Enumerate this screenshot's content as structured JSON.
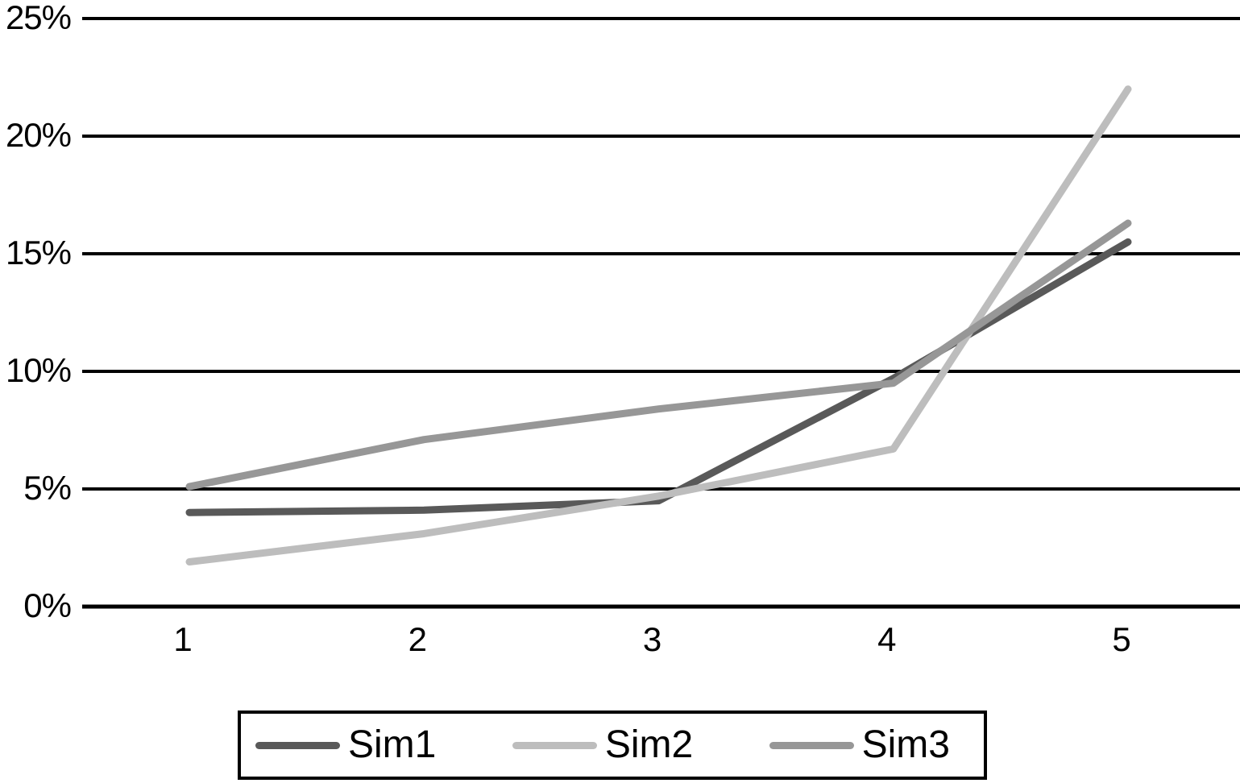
{
  "colors": {
    "background": "#ffffff",
    "gridline": "#000000",
    "text": "#000000",
    "legend_border": "#000000",
    "sim1": "#595959",
    "sim2": "#bdbdbd",
    "sim3": "#979797"
  },
  "chart_data": {
    "type": "line",
    "title": "",
    "xlabel": "",
    "ylabel": "",
    "categories": [
      "1",
      "2",
      "3",
      "4",
      "5"
    ],
    "series": [
      {
        "name": "Sim1",
        "color": "#595959",
        "values": [
          4.0,
          4.1,
          4.5,
          9.7,
          15.5
        ]
      },
      {
        "name": "Sim2",
        "color": "#bdbdbd",
        "values": [
          1.9,
          3.1,
          4.7,
          6.7,
          22.0
        ]
      },
      {
        "name": "Sim3",
        "color": "#979797",
        "values": [
          5.1,
          7.1,
          8.4,
          9.5,
          16.3
        ]
      }
    ],
    "y_axis": {
      "min": 0,
      "max": 25,
      "step": 5,
      "format": "percent",
      "ticks": [
        "0%",
        "5%",
        "10%",
        "15%",
        "20%",
        "25%"
      ]
    },
    "x_axis": {
      "ticks": [
        "1",
        "2",
        "3",
        "4",
        "5"
      ]
    },
    "grid": "horizontal",
    "legend": {
      "position": "bottom",
      "border": true,
      "entries": [
        "Sim1",
        "Sim2",
        "Sim3"
      ]
    }
  }
}
